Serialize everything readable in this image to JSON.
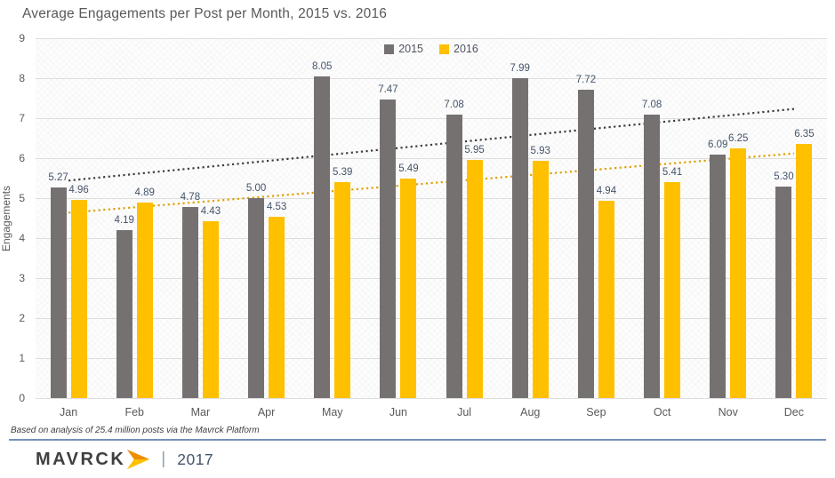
{
  "page": {
    "footnote": "Based on analysis of 25.4 million posts via the Mavrck Platform",
    "footer": {
      "logo_text": "MAVRCK",
      "divider": "|",
      "year": "2017"
    }
  },
  "chart_data": {
    "type": "bar",
    "title": "Average Engagements per Post per Month, 2015 vs. 2016",
    "xlabel": "",
    "ylabel": "Engagements",
    "ylim": [
      0,
      9
    ],
    "ytick_step": 1,
    "grid": true,
    "legend_position": "top-center",
    "value_labels": true,
    "value_label_decimals": 2,
    "categories": [
      "Jan",
      "Feb",
      "Mar",
      "Apr",
      "May",
      "Jun",
      "Jul",
      "Aug",
      "Sep",
      "Oct",
      "Nov",
      "Dec"
    ],
    "series": [
      {
        "name": "2015",
        "color": "#767171",
        "values": [
          5.27,
          4.19,
          4.78,
          5.0,
          8.05,
          7.47,
          7.08,
          7.99,
          7.72,
          7.08,
          6.09,
          5.3
        ],
        "trendline": {
          "type": "linear",
          "style": "dotted",
          "color": "#3D3D3D"
        }
      },
      {
        "name": "2016",
        "color": "#FFC000",
        "values": [
          4.96,
          4.89,
          4.43,
          4.53,
          5.39,
          5.49,
          5.95,
          5.93,
          4.94,
          5.41,
          6.25,
          6.35
        ],
        "trendline": {
          "type": "linear",
          "style": "dotted",
          "color": "#DDA100"
        }
      }
    ]
  },
  "colors": {
    "gridline": "#DEDEDE",
    "axis_text": "#595959",
    "value_label_text": "#44546A",
    "title_text": "#595959",
    "rule": "#7590BD",
    "logo_text": "#404040",
    "logo_arrow_top": "#EE8E00",
    "logo_arrow_bottom": "#FFC000"
  }
}
